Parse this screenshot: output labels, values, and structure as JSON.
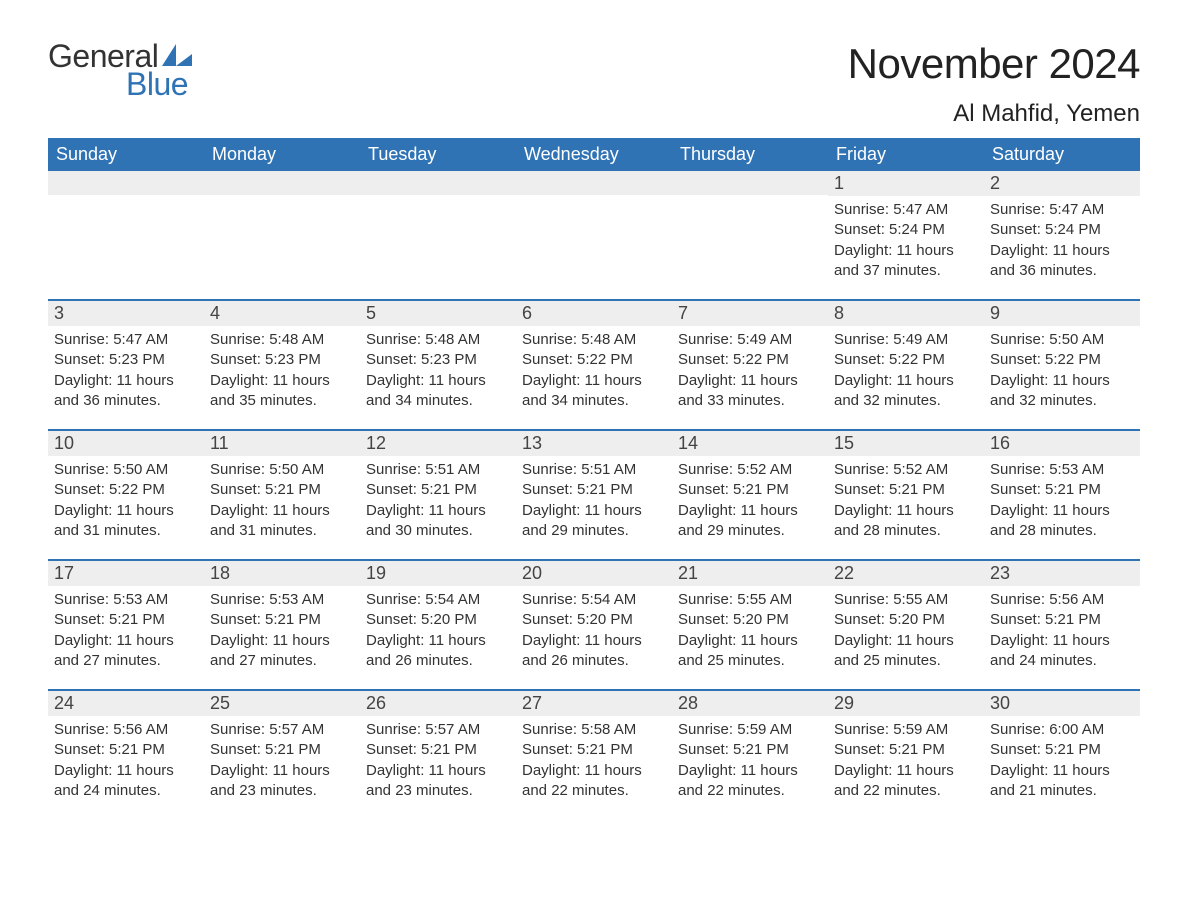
{
  "brand": {
    "general": "General",
    "blue": "Blue",
    "mark_color": "#2f73b5"
  },
  "title": {
    "month": "November 2024",
    "location": "Al Mahfid, Yemen"
  },
  "colors": {
    "header_bg": "#2f73b5",
    "header_text": "#ffffff",
    "daynum_bg": "#eeeeee",
    "rule": "#2f73b5",
    "text": "#333333",
    "background": "#ffffff"
  },
  "typography": {
    "month_fontsize": 42,
    "location_fontsize": 24,
    "dow_fontsize": 18,
    "daynum_fontsize": 18,
    "body_fontsize": 15
  },
  "layout": {
    "columns": 7,
    "rows": 5,
    "leading_blanks": 5
  },
  "days_of_week": [
    "Sunday",
    "Monday",
    "Tuesday",
    "Wednesday",
    "Thursday",
    "Friday",
    "Saturday"
  ],
  "days": [
    {
      "n": "1",
      "sunrise": "5:47 AM",
      "sunset": "5:24 PM",
      "dl_h": 11,
      "dl_m": 37
    },
    {
      "n": "2",
      "sunrise": "5:47 AM",
      "sunset": "5:24 PM",
      "dl_h": 11,
      "dl_m": 36
    },
    {
      "n": "3",
      "sunrise": "5:47 AM",
      "sunset": "5:23 PM",
      "dl_h": 11,
      "dl_m": 36
    },
    {
      "n": "4",
      "sunrise": "5:48 AM",
      "sunset": "5:23 PM",
      "dl_h": 11,
      "dl_m": 35
    },
    {
      "n": "5",
      "sunrise": "5:48 AM",
      "sunset": "5:23 PM",
      "dl_h": 11,
      "dl_m": 34
    },
    {
      "n": "6",
      "sunrise": "5:48 AM",
      "sunset": "5:22 PM",
      "dl_h": 11,
      "dl_m": 34
    },
    {
      "n": "7",
      "sunrise": "5:49 AM",
      "sunset": "5:22 PM",
      "dl_h": 11,
      "dl_m": 33
    },
    {
      "n": "8",
      "sunrise": "5:49 AM",
      "sunset": "5:22 PM",
      "dl_h": 11,
      "dl_m": 32
    },
    {
      "n": "9",
      "sunrise": "5:50 AM",
      "sunset": "5:22 PM",
      "dl_h": 11,
      "dl_m": 32
    },
    {
      "n": "10",
      "sunrise": "5:50 AM",
      "sunset": "5:22 PM",
      "dl_h": 11,
      "dl_m": 31
    },
    {
      "n": "11",
      "sunrise": "5:50 AM",
      "sunset": "5:21 PM",
      "dl_h": 11,
      "dl_m": 31
    },
    {
      "n": "12",
      "sunrise": "5:51 AM",
      "sunset": "5:21 PM",
      "dl_h": 11,
      "dl_m": 30
    },
    {
      "n": "13",
      "sunrise": "5:51 AM",
      "sunset": "5:21 PM",
      "dl_h": 11,
      "dl_m": 29
    },
    {
      "n": "14",
      "sunrise": "5:52 AM",
      "sunset": "5:21 PM",
      "dl_h": 11,
      "dl_m": 29
    },
    {
      "n": "15",
      "sunrise": "5:52 AM",
      "sunset": "5:21 PM",
      "dl_h": 11,
      "dl_m": 28
    },
    {
      "n": "16",
      "sunrise": "5:53 AM",
      "sunset": "5:21 PM",
      "dl_h": 11,
      "dl_m": 28
    },
    {
      "n": "17",
      "sunrise": "5:53 AM",
      "sunset": "5:21 PM",
      "dl_h": 11,
      "dl_m": 27
    },
    {
      "n": "18",
      "sunrise": "5:53 AM",
      "sunset": "5:21 PM",
      "dl_h": 11,
      "dl_m": 27
    },
    {
      "n": "19",
      "sunrise": "5:54 AM",
      "sunset": "5:20 PM",
      "dl_h": 11,
      "dl_m": 26
    },
    {
      "n": "20",
      "sunrise": "5:54 AM",
      "sunset": "5:20 PM",
      "dl_h": 11,
      "dl_m": 26
    },
    {
      "n": "21",
      "sunrise": "5:55 AM",
      "sunset": "5:20 PM",
      "dl_h": 11,
      "dl_m": 25
    },
    {
      "n": "22",
      "sunrise": "5:55 AM",
      "sunset": "5:20 PM",
      "dl_h": 11,
      "dl_m": 25
    },
    {
      "n": "23",
      "sunrise": "5:56 AM",
      "sunset": "5:21 PM",
      "dl_h": 11,
      "dl_m": 24
    },
    {
      "n": "24",
      "sunrise": "5:56 AM",
      "sunset": "5:21 PM",
      "dl_h": 11,
      "dl_m": 24
    },
    {
      "n": "25",
      "sunrise": "5:57 AM",
      "sunset": "5:21 PM",
      "dl_h": 11,
      "dl_m": 23
    },
    {
      "n": "26",
      "sunrise": "5:57 AM",
      "sunset": "5:21 PM",
      "dl_h": 11,
      "dl_m": 23
    },
    {
      "n": "27",
      "sunrise": "5:58 AM",
      "sunset": "5:21 PM",
      "dl_h": 11,
      "dl_m": 22
    },
    {
      "n": "28",
      "sunrise": "5:59 AM",
      "sunset": "5:21 PM",
      "dl_h": 11,
      "dl_m": 22
    },
    {
      "n": "29",
      "sunrise": "5:59 AM",
      "sunset": "5:21 PM",
      "dl_h": 11,
      "dl_m": 22
    },
    {
      "n": "30",
      "sunrise": "6:00 AM",
      "sunset": "5:21 PM",
      "dl_h": 11,
      "dl_m": 21
    }
  ],
  "labels": {
    "sunrise": "Sunrise: ",
    "sunset": "Sunset: ",
    "daylight_a": "Daylight: ",
    "hours": " hours",
    "and": "and ",
    "minutes": " minutes."
  }
}
